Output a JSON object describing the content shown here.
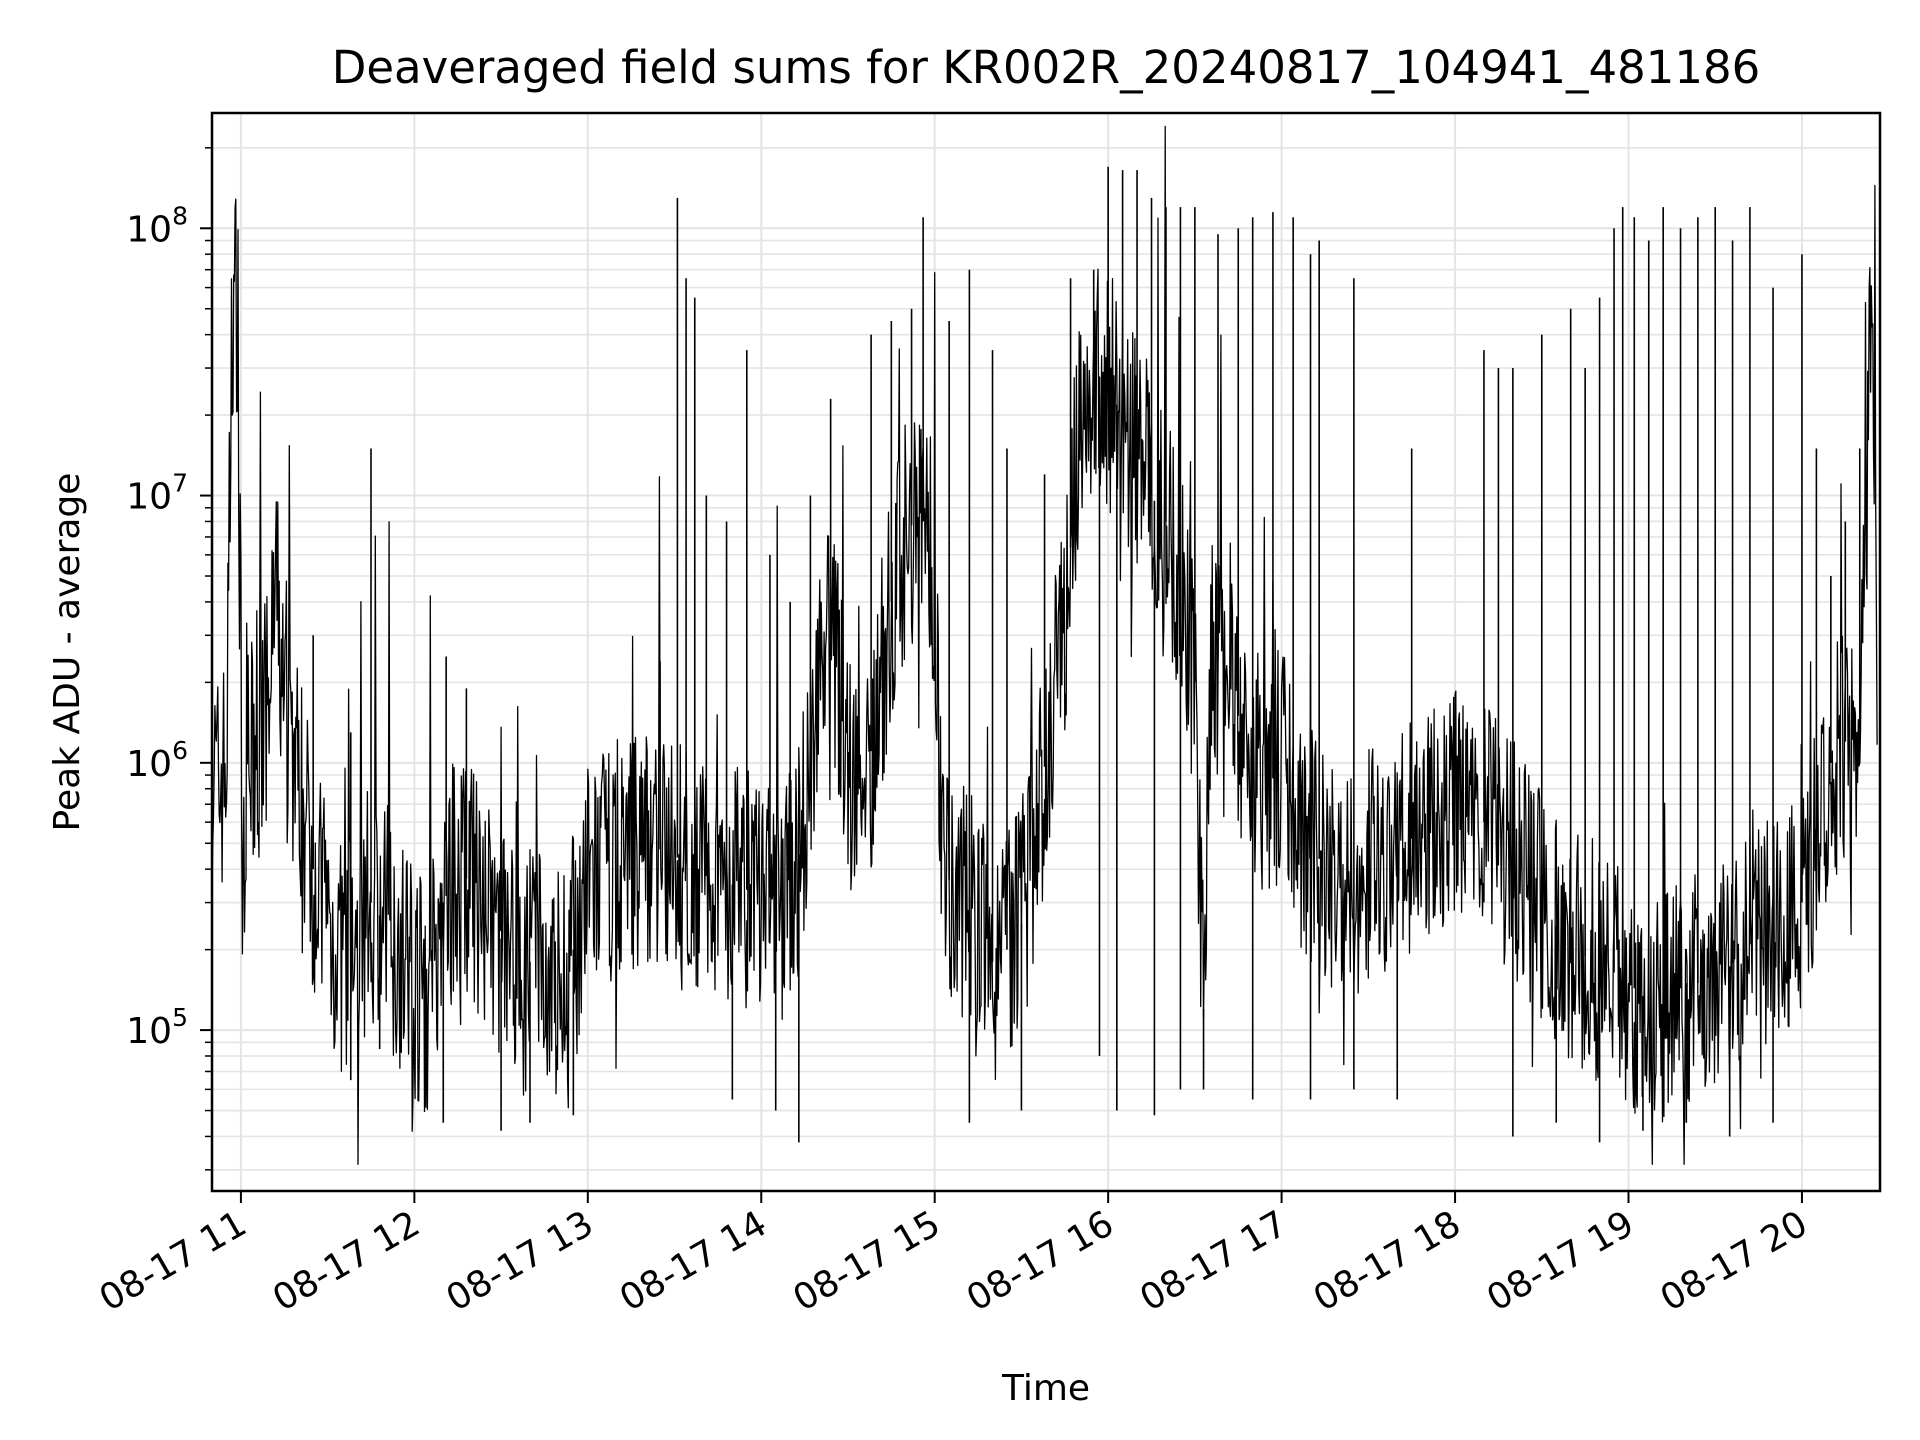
{
  "chart_data": {
    "type": "line",
    "title": "Deaveraged field sums for KR002R_20240817_104941_481186",
    "xlabel": "Time",
    "ylabel": "Peak ADU - average",
    "yscale": "log",
    "xlim": [
      "2024-08-17 10:50",
      "2024-08-17 20:27"
    ],
    "ylim": [
      25000,
      270000000
    ],
    "grid": true,
    "line_color": "#000000",
    "x_tick_labels": [
      "08-17 11",
      "08-17 12",
      "08-17 13",
      "08-17 14",
      "08-17 15",
      "08-17 16",
      "08-17 17",
      "08-17 18",
      "08-17 19",
      "08-17 20"
    ],
    "y_tick_labels": [
      {
        "value": 100000,
        "base": "10",
        "exp": "5"
      },
      {
        "value": 1000000,
        "base": "10",
        "exp": "6"
      },
      {
        "value": 10000000,
        "base": "10",
        "exp": "7"
      },
      {
        "value": 100000000,
        "base": "10",
        "exp": "8"
      }
    ],
    "series": [
      {
        "points": [
          [
            "2024-08-17 10:50",
            900000
          ],
          [
            "2024-08-17 10:52",
            800000
          ],
          [
            "2024-08-17 10:55",
            1000000
          ],
          [
            "2024-08-17 10:57",
            48000000
          ],
          [
            "2024-08-17 10:59",
            60000000
          ],
          [
            "2024-08-17 11:00",
            200000
          ],
          [
            "2024-08-17 11:02",
            1200000
          ],
          [
            "2024-08-17 11:05",
            900000
          ],
          [
            "2024-08-17 11:10",
            1800000
          ],
          [
            "2024-08-17 11:12",
            4700000
          ],
          [
            "2024-08-17 11:15",
            1500000
          ],
          [
            "2024-08-17 11:20",
            900000
          ],
          [
            "2024-08-17 11:25",
            400000
          ],
          [
            "2024-08-17 11:30",
            250000
          ],
          [
            "2024-08-17 11:35",
            180000
          ],
          [
            "2024-08-17 11:40",
            220000
          ],
          [
            "2024-08-17 11:45",
            300000
          ],
          [
            "2024-08-17 11:50",
            250000
          ],
          [
            "2024-08-17 11:55",
            200000
          ],
          [
            "2024-08-17 12:00",
            150000
          ],
          [
            "2024-08-17 12:05",
            130000
          ],
          [
            "2024-08-17 12:10",
            300000
          ],
          [
            "2024-08-17 12:15",
            400000
          ],
          [
            "2024-08-17 12:20",
            350000
          ],
          [
            "2024-08-17 12:25",
            250000
          ],
          [
            "2024-08-17 12:30",
            220000
          ],
          [
            "2024-08-17 12:35",
            200000
          ],
          [
            "2024-08-17 12:40",
            180000
          ],
          [
            "2024-08-17 12:45",
            160000
          ],
          [
            "2024-08-17 12:50",
            150000
          ],
          [
            "2024-08-17 12:55",
            200000
          ],
          [
            "2024-08-17 13:00",
            350000
          ],
          [
            "2024-08-17 13:10",
            450000
          ],
          [
            "2024-08-17 13:20",
            500000
          ],
          [
            "2024-08-17 13:30",
            450000
          ],
          [
            "2024-08-17 13:40",
            380000
          ],
          [
            "2024-08-17 13:50",
            350000
          ],
          [
            "2024-08-17 14:00",
            320000
          ],
          [
            "2024-08-17 14:10",
            300000
          ],
          [
            "2024-08-17 14:15",
            600000
          ],
          [
            "2024-08-17 14:20",
            2500000
          ],
          [
            "2024-08-17 14:25",
            3000000
          ],
          [
            "2024-08-17 14:30",
            1000000
          ],
          [
            "2024-08-17 14:35",
            700000
          ],
          [
            "2024-08-17 14:40",
            1500000
          ],
          [
            "2024-08-17 14:45",
            4000000
          ],
          [
            "2024-08-17 14:50",
            7000000
          ],
          [
            "2024-08-17 14:55",
            9000000
          ],
          [
            "2024-08-17 15:00",
            5000000
          ],
          [
            "2024-08-17 15:03",
            350000
          ],
          [
            "2024-08-17 15:10",
            400000
          ],
          [
            "2024-08-17 15:15",
            250000
          ],
          [
            "2024-08-17 15:20",
            180000
          ],
          [
            "2024-08-17 15:25",
            200000
          ],
          [
            "2024-08-17 15:30",
            250000
          ],
          [
            "2024-08-17 15:35",
            500000
          ],
          [
            "2024-08-17 15:40",
            1500000
          ],
          [
            "2024-08-17 15:45",
            3000000
          ],
          [
            "2024-08-17 15:50",
            20000000
          ],
          [
            "2024-08-17 15:55",
            30000000
          ],
          [
            "2024-08-17 16:00",
            25000000
          ],
          [
            "2024-08-17 16:05",
            20000000
          ],
          [
            "2024-08-17 16:10",
            15000000
          ],
          [
            "2024-08-17 16:15",
            10000000
          ],
          [
            "2024-08-17 16:20",
            8000000
          ],
          [
            "2024-08-17 16:25",
            5000000
          ],
          [
            "2024-08-17 16:30",
            2000000
          ],
          [
            "2024-08-17 16:33",
            120000
          ],
          [
            "2024-08-17 16:36",
            3000000
          ],
          [
            "2024-08-17 16:40",
            2000000
          ],
          [
            "2024-08-17 16:45",
            1500000
          ],
          [
            "2024-08-17 16:50",
            1000000
          ],
          [
            "2024-08-17 16:55",
            800000
          ],
          [
            "2024-08-17 17:00",
            1000000
          ],
          [
            "2024-08-17 17:05",
            600000
          ],
          [
            "2024-08-17 17:10",
            500000
          ],
          [
            "2024-08-17 17:15",
            400000
          ],
          [
            "2024-08-17 17:20",
            350000
          ],
          [
            "2024-08-17 17:30",
            400000
          ],
          [
            "2024-08-17 17:40",
            450000
          ],
          [
            "2024-08-17 17:50",
            600000
          ],
          [
            "2024-08-17 18:00",
            700000
          ],
          [
            "2024-08-17 18:10",
            600000
          ],
          [
            "2024-08-17 18:20",
            450000
          ],
          [
            "2024-08-17 18:30",
            300000
          ],
          [
            "2024-08-17 18:40",
            200000
          ],
          [
            "2024-08-17 18:50",
            180000
          ],
          [
            "2024-08-17 19:00",
            150000
          ],
          [
            "2024-08-17 19:10",
            120000
          ],
          [
            "2024-08-17 19:20",
            150000
          ],
          [
            "2024-08-17 19:30",
            150000
          ],
          [
            "2024-08-17 19:40",
            200000
          ],
          [
            "2024-08-17 19:50",
            250000
          ],
          [
            "2024-08-17 20:00",
            300000
          ],
          [
            "2024-08-17 20:05",
            500000
          ],
          [
            "2024-08-17 20:10",
            1000000
          ],
          [
            "2024-08-17 20:15",
            1200000
          ],
          [
            "2024-08-17 20:20",
            1000000
          ],
          [
            "2024-08-17 20:24",
            60000000
          ],
          [
            "2024-08-17 20:26",
            1500000
          ]
        ],
        "spikes": [
          [
            "2024-08-17 11:25",
            3000000
          ],
          [
            "2024-08-17 11:38",
            1300000
          ],
          [
            "2024-08-17 11:45",
            15000000
          ],
          [
            "2024-08-17 12:11",
            2500000
          ],
          [
            "2024-08-17 12:18",
            1900000
          ],
          [
            "2024-08-17 13:25",
            2400000
          ],
          [
            "2024-08-17 13:31",
            130000000
          ],
          [
            "2024-08-17 13:34",
            65000000
          ],
          [
            "2024-08-17 13:37",
            55000000
          ],
          [
            "2024-08-17 13:41",
            10000000
          ],
          [
            "2024-08-17 13:48",
            8000000
          ],
          [
            "2024-08-17 13:55",
            35000000
          ],
          [
            "2024-08-17 14:03",
            6000000
          ],
          [
            "2024-08-17 14:10",
            4000000
          ],
          [
            "2024-08-17 14:17",
            10000000
          ],
          [
            "2024-08-17 14:24",
            23000000
          ],
          [
            "2024-08-17 14:38",
            40000000
          ],
          [
            "2024-08-17 14:45",
            45000000
          ],
          [
            "2024-08-17 14:52",
            50000000
          ],
          [
            "2024-08-17 14:56",
            110000000
          ],
          [
            "2024-08-17 15:05",
            45000000
          ],
          [
            "2024-08-17 15:12",
            70000000
          ],
          [
            "2024-08-17 15:20",
            35000000
          ],
          [
            "2024-08-17 15:25",
            15000000
          ],
          [
            "2024-08-17 15:38",
            12000000
          ],
          [
            "2024-08-17 15:47",
            65000000
          ],
          [
            "2024-08-17 15:55",
            70000000
          ],
          [
            "2024-08-17 16:00",
            170000000
          ],
          [
            "2024-08-17 16:05",
            165000000
          ],
          [
            "2024-08-17 16:10",
            165000000
          ],
          [
            "2024-08-17 16:15",
            130000000
          ],
          [
            "2024-08-17 16:20",
            120000000
          ],
          [
            "2024-08-17 16:25",
            120000000
          ],
          [
            "2024-08-17 16:30",
            120000000
          ],
          [
            "2024-08-17 16:38",
            95000000
          ],
          [
            "2024-08-17 16:45",
            100000000
          ],
          [
            "2024-08-17 16:50",
            110000000
          ],
          [
            "2024-08-17 16:57",
            115000000
          ],
          [
            "2024-08-17 17:04",
            110000000
          ],
          [
            "2024-08-17 17:10",
            80000000
          ],
          [
            "2024-08-17 17:13",
            90000000
          ],
          [
            "2024-08-17 17:25",
            65000000
          ],
          [
            "2024-08-17 17:45",
            15000000
          ],
          [
            "2024-08-17 18:10",
            35000000
          ],
          [
            "2024-08-17 18:15",
            30000000
          ],
          [
            "2024-08-17 18:20",
            30000000
          ],
          [
            "2024-08-17 18:30",
            40000000
          ],
          [
            "2024-08-17 18:40",
            50000000
          ],
          [
            "2024-08-17 18:45",
            30000000
          ],
          [
            "2024-08-17 18:50",
            55000000
          ],
          [
            "2024-08-17 18:55",
            100000000
          ],
          [
            "2024-08-17 18:58",
            120000000
          ],
          [
            "2024-08-17 19:02",
            110000000
          ],
          [
            "2024-08-17 19:07",
            90000000
          ],
          [
            "2024-08-17 19:12",
            120000000
          ],
          [
            "2024-08-17 19:18",
            100000000
          ],
          [
            "2024-08-17 19:24",
            110000000
          ],
          [
            "2024-08-17 19:30",
            120000000
          ],
          [
            "2024-08-17 19:36",
            90000000
          ],
          [
            "2024-08-17 19:42",
            120000000
          ],
          [
            "2024-08-17 19:50",
            60000000
          ],
          [
            "2024-08-17 20:00",
            80000000
          ],
          [
            "2024-08-17 20:05",
            15000000
          ],
          [
            "2024-08-17 20:10",
            5000000
          ],
          [
            "2024-08-17 20:15",
            8000000
          ],
          [
            "2024-08-17 20:20",
            15000000
          ]
        ],
        "dips": [
          [
            "2024-08-17 11:38",
            65000
          ],
          [
            "2024-08-17 11:48",
            85000
          ],
          [
            "2024-08-17 12:10",
            45000
          ],
          [
            "2024-08-17 12:30",
            42000
          ],
          [
            "2024-08-17 12:40",
            45000
          ],
          [
            "2024-08-17 12:55",
            48000
          ],
          [
            "2024-08-17 13:50",
            55000
          ],
          [
            "2024-08-17 14:05",
            50000
          ],
          [
            "2024-08-17 14:13",
            38000
          ],
          [
            "2024-08-17 15:12",
            45000
          ],
          [
            "2024-08-17 15:30",
            50000
          ],
          [
            "2024-08-17 15:57",
            80000
          ],
          [
            "2024-08-17 16:03",
            50000
          ],
          [
            "2024-08-17 16:16",
            48000
          ],
          [
            "2024-08-17 16:25",
            60000
          ],
          [
            "2024-08-17 16:33",
            60000
          ],
          [
            "2024-08-17 16:50",
            55000
          ],
          [
            "2024-08-17 17:10",
            55000
          ],
          [
            "2024-08-17 17:25",
            60000
          ],
          [
            "2024-08-17 17:40",
            55000
          ],
          [
            "2024-08-17 18:20",
            40000
          ],
          [
            "2024-08-17 18:35",
            45000
          ],
          [
            "2024-08-17 18:50",
            38000
          ],
          [
            "2024-08-17 19:05",
            42000
          ],
          [
            "2024-08-17 19:20",
            45000
          ],
          [
            "2024-08-17 19:35",
            40000
          ],
          [
            "2024-08-17 19:50",
            45000
          ]
        ]
      }
    ]
  }
}
